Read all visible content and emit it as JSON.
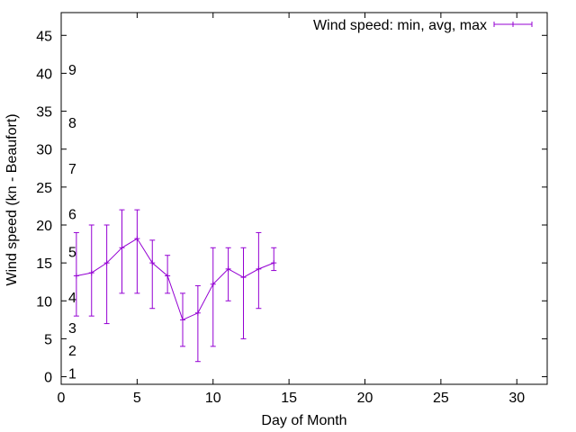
{
  "chart_data": {
    "type": "line",
    "title": "",
    "xlabel": "Day of Month",
    "ylabel": "Wind speed (kn - Beaufort)",
    "xlim": [
      0,
      32
    ],
    "ylim": [
      -1,
      48
    ],
    "xticks": [
      0,
      5,
      10,
      15,
      20,
      25,
      30
    ],
    "yticks": [
      0,
      5,
      10,
      15,
      20,
      25,
      30,
      35,
      40,
      45
    ],
    "grid": false,
    "legend_position": "top-right",
    "series": [
      {
        "name": "Wind speed: min, avg, max",
        "color": "#9400d3",
        "x": [
          1,
          2,
          3,
          4,
          5,
          6,
          7,
          8,
          9,
          10,
          11,
          12,
          13,
          14
        ],
        "avg": [
          13.3,
          13.7,
          15,
          17,
          18.2,
          15,
          13.3,
          7.5,
          8.4,
          12.2,
          14.2,
          13.1,
          14.2,
          15
        ],
        "min": [
          8,
          8,
          7,
          11,
          11,
          9,
          11,
          4,
          2,
          4,
          10,
          5,
          9,
          14
        ],
        "max": [
          19,
          20,
          20,
          22,
          22,
          18,
          16,
          11,
          12,
          17,
          17,
          17,
          19,
          17
        ]
      }
    ],
    "annotations": [
      {
        "text": "1",
        "y": 0.5
      },
      {
        "text": "2",
        "y": 3.5
      },
      {
        "text": "3",
        "y": 6.5
      },
      {
        "text": "4",
        "y": 10.5
      },
      {
        "text": "5",
        "y": 16.5
      },
      {
        "text": "6",
        "y": 21.5
      },
      {
        "text": "7",
        "y": 27.5
      },
      {
        "text": "8",
        "y": 33.5
      },
      {
        "text": "9",
        "y": 40.5
      }
    ]
  }
}
